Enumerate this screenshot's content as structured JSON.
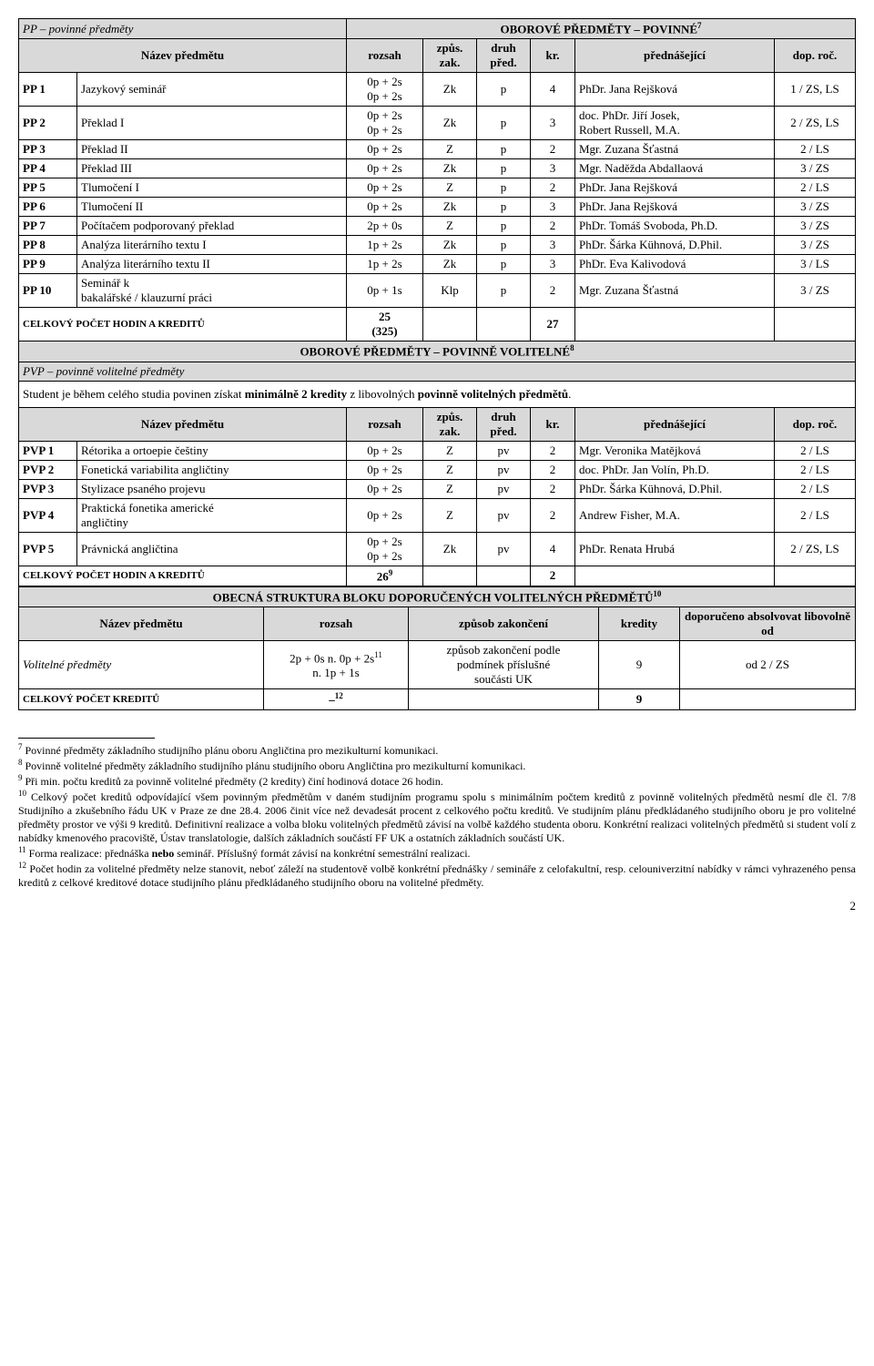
{
  "section1": {
    "title": "OBOROVÉ PŘEDMĚTY – POVINNÉ",
    "title_sup": "7",
    "subtitle": "PP – povinné předměty",
    "header": {
      "name": "Název předmětu",
      "rozsah": "rozsah",
      "zpus": "způs. zak.",
      "druh": "druh před.",
      "kr": "kr.",
      "pred": "přednášející",
      "rok": "dop. roč."
    },
    "rows": [
      {
        "code": "PP 1",
        "name": "Jazykový seminář",
        "rozsah": "0p + 2s\n0p + 2s",
        "zpus": "Zk",
        "druh": "p",
        "kr": "4",
        "pred": "PhDr. Jana Rejšková",
        "rok": "1 / ZS, LS"
      },
      {
        "code": "PP 2",
        "name": "Překlad I",
        "rozsah": "0p + 2s\n0p + 2s",
        "zpus": "Zk",
        "druh": "p",
        "kr": "3",
        "pred": "doc. PhDr. Jiří Josek,\nRobert Russell, M.A.",
        "rok": "2 / ZS, LS"
      },
      {
        "code": "PP 3",
        "name": "Překlad II",
        "rozsah": "0p + 2s",
        "zpus": "Z",
        "druh": "p",
        "kr": "2",
        "pred": "Mgr. Zuzana Šťastná",
        "rok": "2 / LS"
      },
      {
        "code": "PP 4",
        "name": "Překlad III",
        "rozsah": "0p + 2s",
        "zpus": "Zk",
        "druh": "p",
        "kr": "3",
        "pred": "Mgr. Naděžda Abdallaová",
        "rok": "3 / ZS"
      },
      {
        "code": "PP 5",
        "name": "Tlumočení I",
        "rozsah": "0p + 2s",
        "zpus": "Z",
        "druh": "p",
        "kr": "2",
        "pred": "PhDr. Jana Rejšková",
        "rok": "2 / LS"
      },
      {
        "code": "PP 6",
        "name": "Tlumočení II",
        "rozsah": "0p + 2s",
        "zpus": "Zk",
        "druh": "p",
        "kr": "3",
        "pred": "PhDr. Jana Rejšková",
        "rok": "3 / ZS"
      },
      {
        "code": "PP 7",
        "name": "Počítačem podporovaný překlad",
        "rozsah": "2p + 0s",
        "zpus": "Z",
        "druh": "p",
        "kr": "2",
        "pred": "PhDr. Tomáš Svoboda, Ph.D.",
        "rok": "3 / ZS"
      },
      {
        "code": "PP 8",
        "name": "Analýza literárního textu I",
        "rozsah": "1p + 2s",
        "zpus": "Zk",
        "druh": "p",
        "kr": "3",
        "pred": "PhDr. Šárka Kühnová, D.Phil.",
        "rok": "3 / ZS"
      },
      {
        "code": "PP 9",
        "name": "Analýza literárního textu II",
        "rozsah": "1p + 2s",
        "zpus": "Zk",
        "druh": "p",
        "kr": "3",
        "pred": "PhDr. Eva Kalivodová",
        "rok": "3 / LS"
      },
      {
        "code": "PP 10",
        "name": "Seminář k\nbakalářské / klauzurní práci",
        "rozsah": "0p + 1s",
        "zpus": "Klp",
        "druh": "p",
        "kr": "2",
        "pred": "Mgr. Zuzana Šťastná",
        "rok": "3 / ZS"
      }
    ],
    "total": {
      "label": "CELKOVÝ POČET HODIN A KREDITŮ",
      "hours": "25\n(325)",
      "kr": "27"
    }
  },
  "section2": {
    "title": "OBOROVÉ PŘEDMĚTY – POVINNĚ VOLITELNÉ",
    "title_sup": "8",
    "subtitle": "PVP – povinně volitelné předměty",
    "note": "Student je během celého studia povinen získat minimálně 2 kredity z libovolných povinně volitelných předmětů.",
    "header": {
      "name": "Název předmětu",
      "rozsah": "rozsah",
      "zpus": "způs. zak.",
      "druh": "druh před.",
      "kr": "kr.",
      "pred": "přednášející",
      "rok": "dop. roč."
    },
    "rows": [
      {
        "code": "PVP 1",
        "name": "Rétorika a ortoepie češtiny",
        "rozsah": "0p + 2s",
        "zpus": "Z",
        "druh": "pv",
        "kr": "2",
        "pred": "Mgr. Veronika Matějková",
        "rok": "2 / LS"
      },
      {
        "code": "PVP 2",
        "name": "Fonetická variabilita angličtiny",
        "rozsah": "0p + 2s",
        "zpus": "Z",
        "druh": "pv",
        "kr": "2",
        "pred": "doc. PhDr. Jan Volín, Ph.D.",
        "rok": "2 / LS"
      },
      {
        "code": "PVP 3",
        "name": "Stylizace psaného projevu",
        "rozsah": "0p + 2s",
        "zpus": "Z",
        "druh": "pv",
        "kr": "2",
        "pred": "PhDr. Šárka Kühnová, D.Phil.",
        "rok": "2 / LS"
      },
      {
        "code": "PVP 4",
        "name": "Praktická fonetika americké\nangličtiny",
        "rozsah": "0p + 2s",
        "zpus": "Z",
        "druh": "pv",
        "kr": "2",
        "pred": "Andrew Fisher, M.A.",
        "rok": "2 / LS"
      },
      {
        "code": "PVP 5",
        "name": "Právnická angličtina",
        "rozsah": "0p + 2s\n0p + 2s",
        "zpus": "Zk",
        "druh": "pv",
        "kr": "4",
        "pred": "PhDr. Renata Hrubá",
        "rok": "2 / ZS, LS"
      }
    ],
    "total": {
      "label": "CELKOVÝ POČET HODIN A KREDITŮ",
      "hours": "26",
      "hours_sup": "9",
      "kr": "2"
    }
  },
  "section3": {
    "title": "OBECNÁ STRUKTURA BLOKU DOPORUČENÝCH VOLITELNÝCH PŘEDMĚTŮ",
    "title_sup": "10",
    "header": {
      "name": "Název předmětu",
      "rozsah": "rozsah",
      "zpus": "způsob zakončení",
      "kr": "kredity",
      "rok": "doporučeno absolvovat libovolně od"
    },
    "row": {
      "name": "Volitelné předměty",
      "rozsah": "2p + 0s n. 0p + 2s",
      "rozsah_sup": "11",
      "rozsah2": "n. 1p + 1s",
      "zpus": "způsob zakončení podle\npodmínek příslušné\nsoučásti UK",
      "kr": "9",
      "rok": "od 2 / ZS"
    },
    "total": {
      "label": "CELKOVÝ POČET KREDITŮ",
      "hours": "–",
      "hours_sup": "12",
      "kr": "9"
    }
  },
  "footnotes": {
    "f7": "Povinné předměty základního studijního plánu oboru Angličtina pro mezikulturní komunikaci.",
    "f8": "Povinně volitelné předměty základního studijního plánu studijního oboru Angličtina pro mezikulturní komunikaci.",
    "f9": "Při min. počtu kreditů za povinně volitelné předměty (2 kredity) činí hodinová dotace 26 hodin.",
    "f10": "Celkový počet kreditů odpovídající všem povinným předmětům v daném studijním programu spolu s minimálním počtem kreditů z povinně volitelných předmětů nesmí dle čl. 7/8 Studijního a zkušebního řádu UK v Praze ze dne 28.4. 2006 činit více než devadesát procent z celkového počtu kreditů. Ve studijním plánu předkládaného studijního oboru je pro volitelné předměty prostor ve výši 9 kreditů. Definitivní realizace a volba bloku volitelných předmětů závisí na volbě každého studenta oboru. Konkrétní realizaci volitelných předmětů si student volí z nabídky kmenového pracoviště, Ústav translatologie, dalších základních součástí FF UK a ostatních základních součástí UK.",
    "f11": "Forma realizace: přednáška nebo seminář. Příslušný formát závisí na konkrétní semestrální realizaci.",
    "f12": "Počet hodin za volitelné předměty nelze stanovit, neboť záleží na studentově volbě konkrétní přednášky / semináře z celofakultní, resp. celouniverzitní nabídky v rámci vyhrazeného pensa kreditů z celkové kreditové dotace studijního plánu předkládaného studijního oboru na volitelné předměty."
  },
  "page_num": "2"
}
